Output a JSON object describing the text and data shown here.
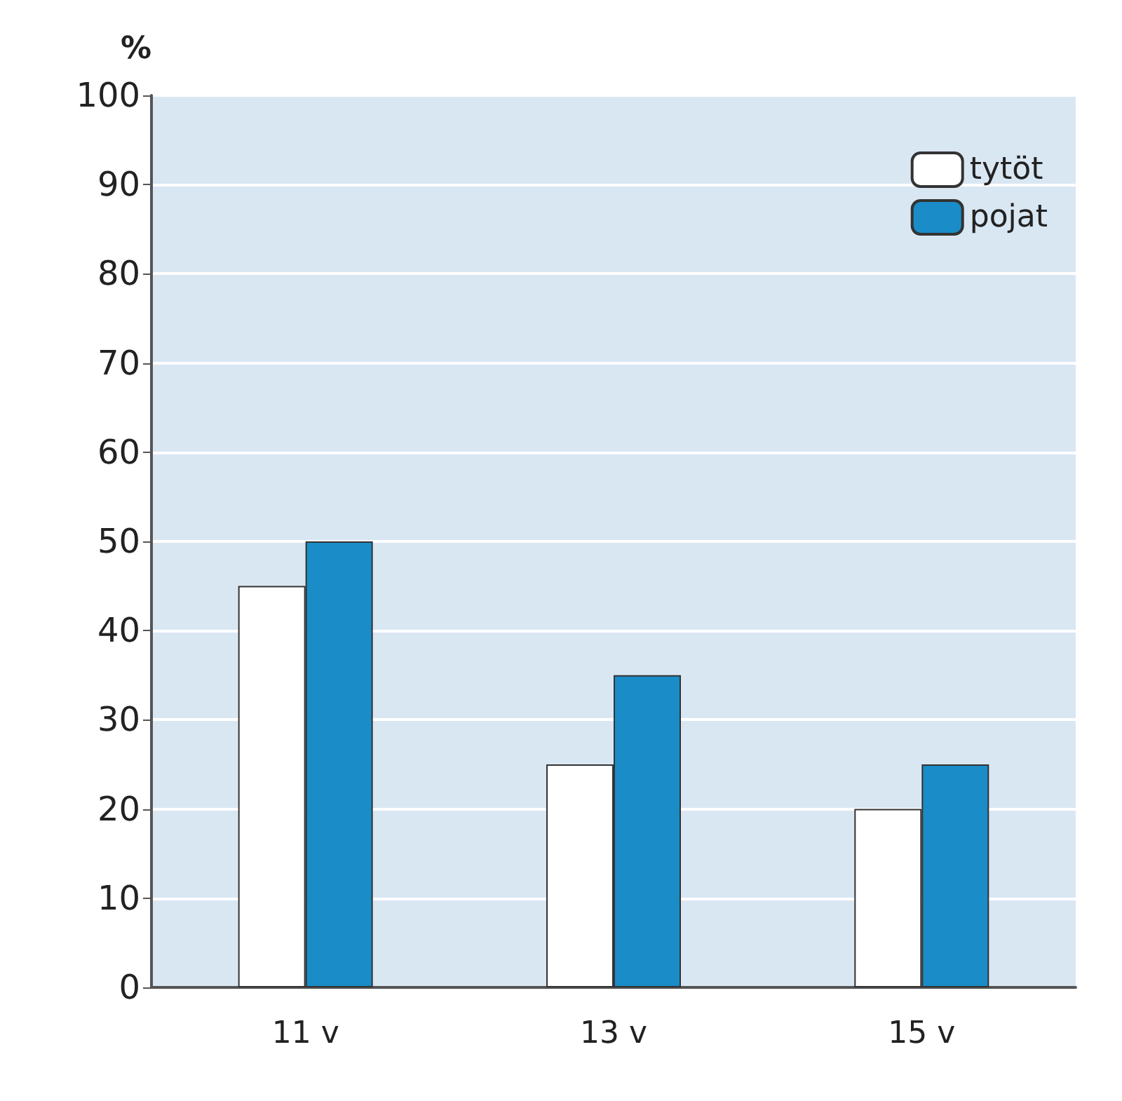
{
  "chart_data": {
    "type": "bar",
    "ylabel": "%",
    "categories": [
      "11 v",
      "13 v",
      "15 v"
    ],
    "series": [
      {
        "name": "tytöt",
        "color": "#ffffff",
        "values": [
          45,
          25,
          20
        ]
      },
      {
        "name": "pojat",
        "color": "#1a8cc8",
        "values": [
          50,
          35,
          25
        ]
      }
    ],
    "ylim": [
      0,
      100
    ],
    "yticks": [
      0,
      10,
      20,
      30,
      40,
      50,
      60,
      70,
      80,
      90,
      100
    ],
    "grid": "y",
    "legend": "top right"
  }
}
